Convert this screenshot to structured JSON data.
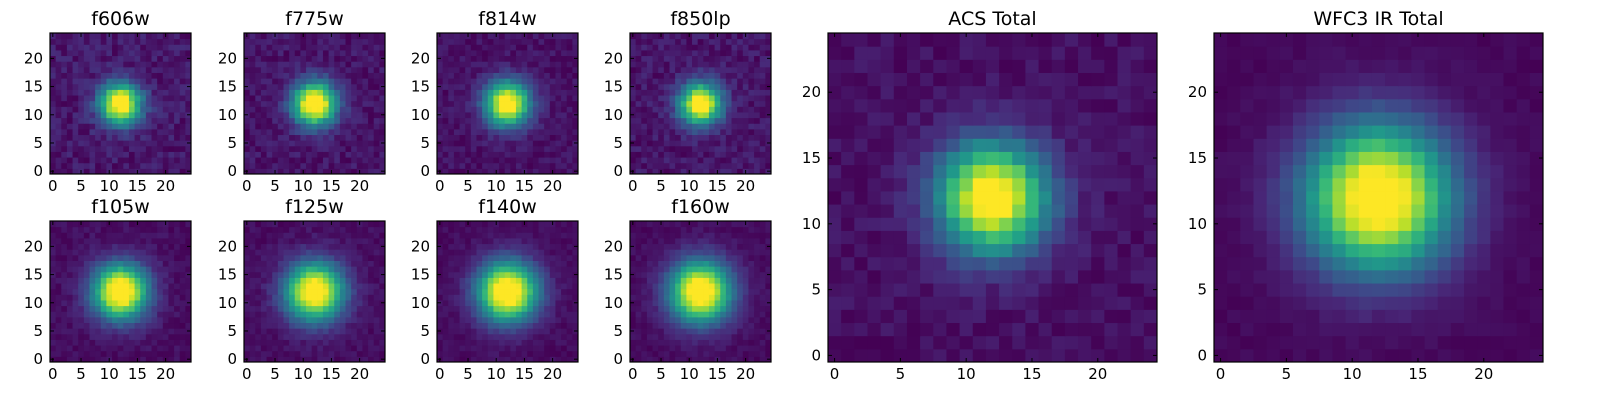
{
  "chart_data": [
    {
      "type": "heatmap",
      "title": "f606w",
      "x_ticks": [
        "0",
        "5",
        "10",
        "15",
        "20"
      ],
      "y_ticks": [
        "0",
        "5",
        "10",
        "15",
        "20"
      ],
      "xlim": [
        0,
        24
      ],
      "ylim": [
        0,
        24
      ],
      "grid_size": 25,
      "center": [
        12,
        12
      ],
      "sigma": 2.6,
      "noise": 0.55,
      "seed": 11,
      "colormap": "viridis",
      "grid": false
    },
    {
      "type": "heatmap",
      "title": "f775w",
      "x_ticks": [
        "0",
        "5",
        "10",
        "15",
        "20"
      ],
      "y_ticks": [
        "0",
        "5",
        "10",
        "15",
        "20"
      ],
      "xlim": [
        0,
        24
      ],
      "ylim": [
        0,
        24
      ],
      "grid_size": 25,
      "center": [
        12,
        12
      ],
      "sigma": 2.7,
      "noise": 0.45,
      "seed": 23,
      "colormap": "viridis",
      "grid": false
    },
    {
      "type": "heatmap",
      "title": "f814w",
      "x_ticks": [
        "0",
        "5",
        "10",
        "15",
        "20"
      ],
      "y_ticks": [
        "0",
        "5",
        "10",
        "15",
        "20"
      ],
      "xlim": [
        0,
        24
      ],
      "ylim": [
        0,
        24
      ],
      "grid_size": 25,
      "center": [
        12,
        12
      ],
      "sigma": 2.8,
      "noise": 0.4,
      "seed": 37,
      "colormap": "viridis",
      "grid": false
    },
    {
      "type": "heatmap",
      "title": "f850lp",
      "x_ticks": [
        "0",
        "5",
        "10",
        "15",
        "20"
      ],
      "y_ticks": [
        "0",
        "5",
        "10",
        "15",
        "20"
      ],
      "xlim": [
        0,
        24
      ],
      "ylim": [
        0,
        24
      ],
      "grid_size": 25,
      "center": [
        12,
        12
      ],
      "sigma": 2.6,
      "noise": 0.5,
      "seed": 41,
      "colormap": "viridis",
      "grid": false
    },
    {
      "type": "heatmap",
      "title": "f105w",
      "x_ticks": [
        "0",
        "5",
        "10",
        "15",
        "20"
      ],
      "y_ticks": [
        "0",
        "5",
        "10",
        "15",
        "20"
      ],
      "xlim": [
        0,
        24
      ],
      "ylim": [
        0,
        24
      ],
      "grid_size": 25,
      "center": [
        12,
        12
      ],
      "sigma": 3.4,
      "noise": 0.3,
      "seed": 53,
      "colormap": "viridis",
      "grid": false
    },
    {
      "type": "heatmap",
      "title": "f125w",
      "x_ticks": [
        "0",
        "5",
        "10",
        "15",
        "20"
      ],
      "y_ticks": [
        "0",
        "5",
        "10",
        "15",
        "20"
      ],
      "xlim": [
        0,
        24
      ],
      "ylim": [
        0,
        24
      ],
      "grid_size": 25,
      "center": [
        12,
        12
      ],
      "sigma": 3.6,
      "noise": 0.3,
      "seed": 61,
      "colormap": "viridis",
      "grid": false
    },
    {
      "type": "heatmap",
      "title": "f140w",
      "x_ticks": [
        "0",
        "5",
        "10",
        "15",
        "20"
      ],
      "y_ticks": [
        "0",
        "5",
        "10",
        "15",
        "20"
      ],
      "xlim": [
        0,
        24
      ],
      "ylim": [
        0,
        24
      ],
      "grid_size": 25,
      "center": [
        12,
        12
      ],
      "sigma": 3.7,
      "noise": 0.25,
      "seed": 73,
      "colormap": "viridis",
      "grid": false
    },
    {
      "type": "heatmap",
      "title": "f160w",
      "x_ticks": [
        "0",
        "5",
        "10",
        "15",
        "20"
      ],
      "y_ticks": [
        "0",
        "5",
        "10",
        "15",
        "20"
      ],
      "xlim": [
        0,
        24
      ],
      "ylim": [
        0,
        24
      ],
      "grid_size": 25,
      "center": [
        12,
        12
      ],
      "sigma": 3.8,
      "noise": 0.25,
      "seed": 89,
      "colormap": "viridis",
      "grid": false
    },
    {
      "type": "heatmap",
      "title": "ACS Total",
      "x_ticks": [
        "0",
        "5",
        "10",
        "15",
        "20"
      ],
      "y_ticks": [
        "0",
        "5",
        "10",
        "15",
        "20"
      ],
      "xlim": [
        0,
        24
      ],
      "ylim": [
        0,
        24
      ],
      "grid_size": 25,
      "center": [
        12,
        12
      ],
      "sigma": 2.9,
      "noise": 0.35,
      "seed": 97,
      "colormap": "viridis",
      "grid": false
    },
    {
      "type": "heatmap",
      "title": "WFC3 IR Total",
      "x_ticks": [
        "0",
        "5",
        "10",
        "15",
        "20"
      ],
      "y_ticks": [
        "0",
        "5",
        "10",
        "15",
        "20"
      ],
      "xlim": [
        0,
        24
      ],
      "ylim": [
        0,
        24
      ],
      "grid_size": 25,
      "center": [
        12,
        12
      ],
      "sigma": 3.9,
      "noise": 0.15,
      "seed": 101,
      "colormap": "viridis",
      "grid": false
    }
  ]
}
